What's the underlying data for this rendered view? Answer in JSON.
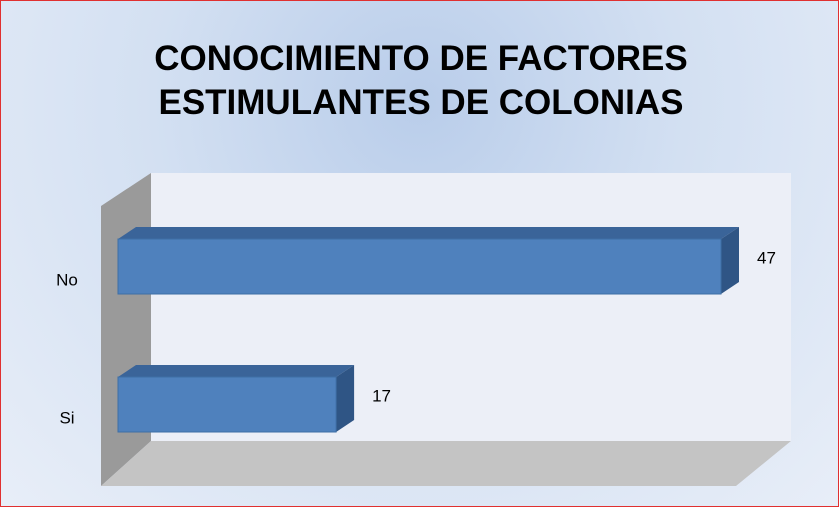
{
  "chart_data": {
    "type": "bar",
    "orientation": "horizontal",
    "title": "CONOCIMIENTO DE FACTORES ESTIMULANTES DE COLONIAS",
    "categories": [
      "No",
      "Si"
    ],
    "values": [
      47,
      17
    ],
    "color": "#4f81bd"
  }
}
